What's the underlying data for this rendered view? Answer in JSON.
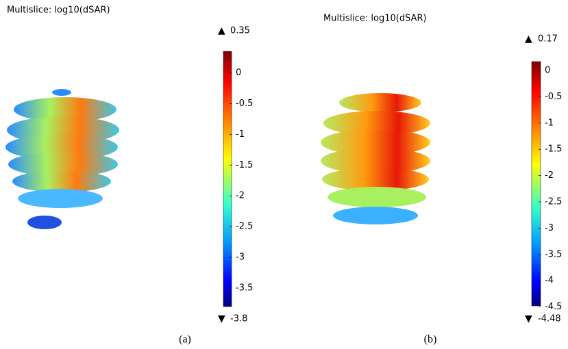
{
  "chart_data": [
    {
      "type": "multislice",
      "title": "Multislice: log10(dSAR)",
      "caption": "(a)",
      "clim": [
        -3.8,
        0.35
      ],
      "cticks": [
        0,
        -0.5,
        -1,
        -1.5,
        -2,
        -2.5,
        -3,
        -3.5
      ]
    },
    {
      "type": "multislice",
      "title": "Multislice: log10(dSAR)",
      "caption": "(b)",
      "clim": [
        -4.48,
        0.17
      ],
      "cticks": [
        0,
        -0.5,
        -1,
        -1.5,
        -2,
        -2.5,
        -3,
        -3.5,
        -4,
        -4.5
      ]
    }
  ]
}
